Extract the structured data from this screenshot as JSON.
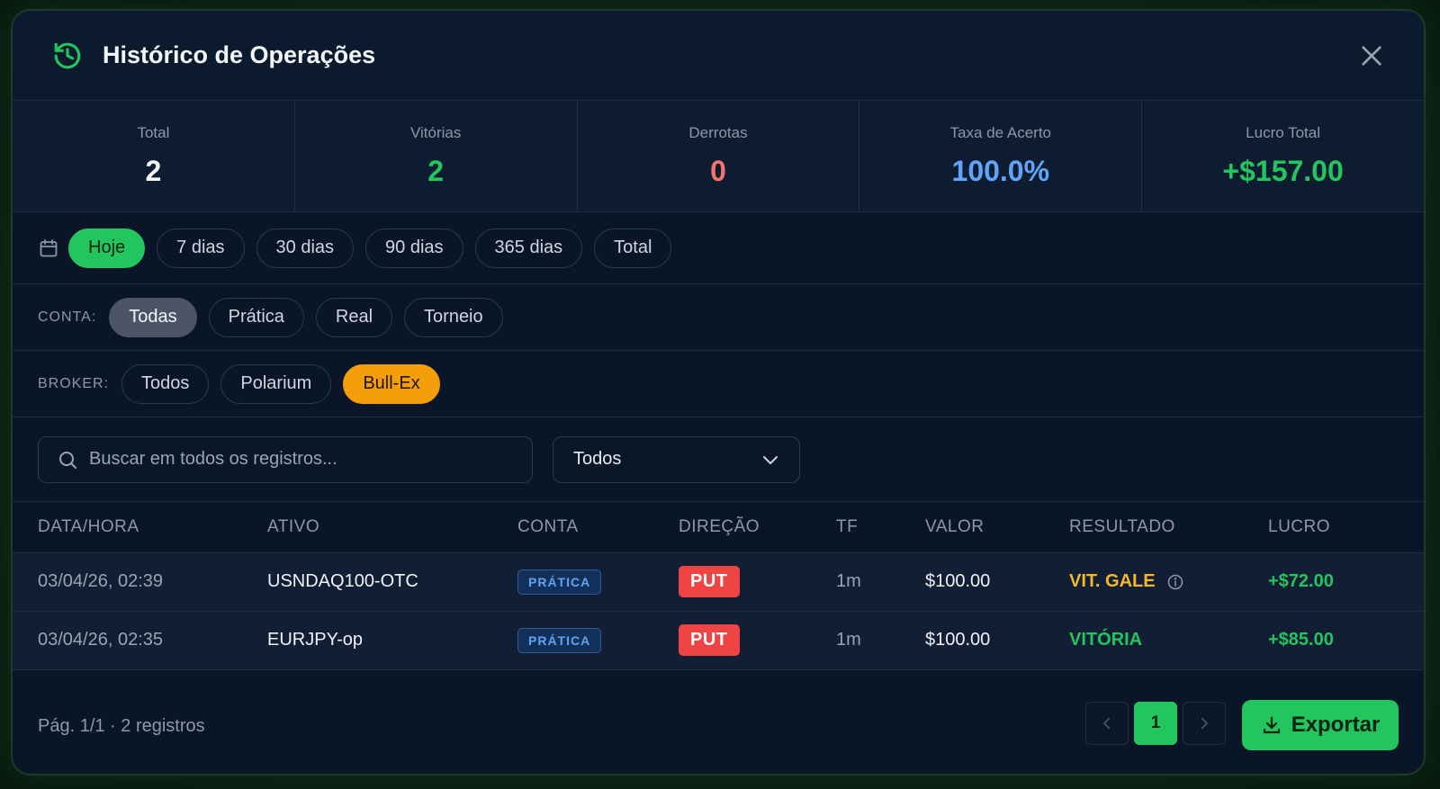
{
  "header": {
    "title": "Histórico de Operações"
  },
  "stats": [
    {
      "label": "Total",
      "value": "2",
      "color": "#f3f6fa"
    },
    {
      "label": "Vitórias",
      "value": "2",
      "color": "#22c55e"
    },
    {
      "label": "Derrotas",
      "value": "0",
      "color": "#f87171"
    },
    {
      "label": "Taxa de Acerto",
      "value": "100.0%",
      "color": "#60a5fa"
    },
    {
      "label": "Lucro Total",
      "value": "+$157.00",
      "color": "#22c55e"
    }
  ],
  "period": {
    "options": [
      "Hoje",
      "7 dias",
      "30 dias",
      "90 dias",
      "365 dias",
      "Total"
    ],
    "selected": "Hoje"
  },
  "conta": {
    "label": "CONTA:",
    "options": [
      "Todas",
      "Prática",
      "Real",
      "Torneio"
    ],
    "selected": "Todas"
  },
  "broker": {
    "label": "BROKER:",
    "options": [
      "Todos",
      "Polarium",
      "Bull-Ex"
    ],
    "selected": "Bull-Ex"
  },
  "search": {
    "placeholder": "Buscar em todos os registros...",
    "value": ""
  },
  "result_filter": {
    "selected": "Todos"
  },
  "table": {
    "headers": [
      "DATA/HORA",
      "ATIVO",
      "CONTA",
      "DIREÇÃO",
      "TF",
      "VALOR",
      "RESULTADO",
      "LUCRO"
    ],
    "rows": [
      {
        "datetime": "03/04/26, 02:39",
        "asset": "USNDAQ100-OTC",
        "account": "PRÁTICA",
        "direction": "PUT",
        "tf": "1m",
        "amount": "$100.00",
        "result": "VIT. GALE",
        "result_type": "gale",
        "profit": "+$72.00"
      },
      {
        "datetime": "03/04/26, 02:35",
        "asset": "EURJPY-op",
        "account": "PRÁTICA",
        "direction": "PUT",
        "tf": "1m",
        "amount": "$100.00",
        "result": "VITÓRIA",
        "result_type": "win",
        "profit": "+$85.00"
      }
    ]
  },
  "footer": {
    "info": "Pág. 1/1 · 2 registros",
    "current_page": "1",
    "export_label": "Exportar"
  }
}
